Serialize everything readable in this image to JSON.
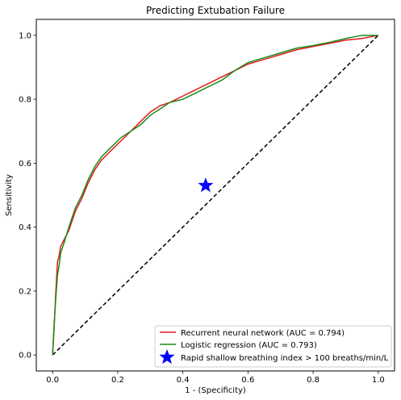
{
  "chart_data": {
    "type": "line",
    "title": "Predicting Extubation Failure",
    "xlabel": "1 - (Specificity)",
    "ylabel": "Sensitivity",
    "xlim": [
      -0.05,
      1.05
    ],
    "ylim": [
      -0.05,
      1.05
    ],
    "x_ticks": [
      "0.0",
      "0.2",
      "0.4",
      "0.6",
      "0.8",
      "1.0"
    ],
    "y_ticks": [
      "0.0",
      "0.2",
      "0.4",
      "0.6",
      "0.8",
      "1.0"
    ],
    "grid": false,
    "legend_position": "lower-right",
    "colors": {
      "rnn": "#e41a1c",
      "logistic": "#1a8a1a",
      "marker": "#0000ff",
      "diagonal": "#000000"
    },
    "series": [
      {
        "name": "Recurrent neural network (AUC = 0.794)",
        "color": "#e41a1c",
        "x": [
          0.0,
          0.005,
          0.01,
          0.015,
          0.02,
          0.025,
          0.035,
          0.05,
          0.07,
          0.09,
          0.11,
          0.13,
          0.15,
          0.18,
          0.21,
          0.24,
          0.27,
          0.3,
          0.33,
          0.36,
          0.4,
          0.44,
          0.48,
          0.52,
          0.56,
          0.6,
          0.65,
          0.7,
          0.75,
          0.8,
          0.85,
          0.9,
          0.95,
          1.0
        ],
        "y": [
          0.0,
          0.09,
          0.2,
          0.29,
          0.31,
          0.34,
          0.36,
          0.39,
          0.45,
          0.49,
          0.54,
          0.58,
          0.61,
          0.64,
          0.67,
          0.7,
          0.73,
          0.76,
          0.78,
          0.79,
          0.81,
          0.83,
          0.85,
          0.87,
          0.89,
          0.91,
          0.925,
          0.94,
          0.955,
          0.965,
          0.975,
          0.985,
          0.99,
          1.0
        ]
      },
      {
        "name": "Logistic regression (AUC = 0.793)",
        "color": "#1a8a1a",
        "x": [
          0.0,
          0.005,
          0.01,
          0.015,
          0.02,
          0.025,
          0.035,
          0.05,
          0.07,
          0.09,
          0.11,
          0.13,
          0.15,
          0.18,
          0.21,
          0.24,
          0.27,
          0.3,
          0.33,
          0.36,
          0.4,
          0.44,
          0.48,
          0.52,
          0.56,
          0.6,
          0.65,
          0.7,
          0.75,
          0.8,
          0.85,
          0.9,
          0.95,
          1.0
        ],
        "y": [
          0.0,
          0.1,
          0.18,
          0.25,
          0.28,
          0.32,
          0.35,
          0.4,
          0.46,
          0.5,
          0.55,
          0.59,
          0.62,
          0.65,
          0.68,
          0.7,
          0.72,
          0.75,
          0.77,
          0.79,
          0.8,
          0.82,
          0.84,
          0.86,
          0.89,
          0.915,
          0.93,
          0.945,
          0.96,
          0.968,
          0.978,
          0.99,
          1.0,
          1.0
        ]
      }
    ],
    "reference_line": {
      "x": [
        0.0,
        1.0
      ],
      "y": [
        0.0,
        1.0
      ],
      "style": "dashed"
    },
    "point": {
      "name": "Rapid shallow breathing index > 100 breaths/min/L",
      "x": 0.47,
      "y": 0.53,
      "marker": "star",
      "color": "#0000ff"
    }
  }
}
